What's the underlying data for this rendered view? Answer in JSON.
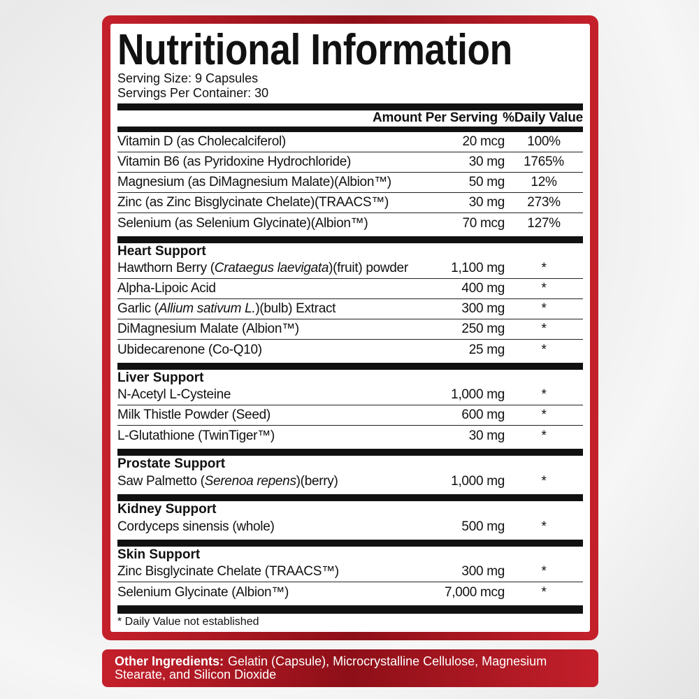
{
  "title": "Nutritional Information",
  "serving_size": "Serving Size: 9 Capsules",
  "servings_per_container": "Servings Per Container: 30",
  "header": {
    "amount": "Amount Per Serving",
    "dv": "%Daily Value"
  },
  "vitamins": [
    {
      "name": "Vitamin D (as Cholecalciferol)",
      "amount": "20 mcg",
      "dv": "100%"
    },
    {
      "name": "Vitamin B6 (as Pyridoxine Hydrochloride)",
      "amount": "30 mg",
      "dv": "1765%"
    },
    {
      "name": "Magnesium (as DiMagnesium Malate)(Albion™)",
      "amount": "50 mg",
      "dv": "12%"
    },
    {
      "name": "Zinc (as Zinc Bisglycinate Chelate)(TRAACS™)",
      "amount": "30 mg",
      "dv": "273%"
    },
    {
      "name": "Selenium (as Selenium Glycinate)(Albion™)",
      "amount": "70 mcg",
      "dv": "127%"
    }
  ],
  "sections": [
    {
      "title": "Heart Support",
      "items": [
        {
          "name": "Hawthorn Berry (Crataegus laevigata)(fruit) powder",
          "italic": "Crataegus laevigata",
          "amount": "1,100 mg",
          "dv": "*"
        },
        {
          "name": "Alpha-Lipoic Acid",
          "amount": "400 mg",
          "dv": "*"
        },
        {
          "name": "Garlic (Allium sativum L.)(bulb) Extract",
          "italic": "Allium sativum L.",
          "amount": "300 mg",
          "dv": "*"
        },
        {
          "name": "DiMagnesium Malate (Albion™)",
          "amount": "250 mg",
          "dv": "*"
        },
        {
          "name": "Ubidecarenone (Co-Q10)",
          "amount": "25 mg",
          "dv": "*"
        }
      ]
    },
    {
      "title": "Liver Support",
      "items": [
        {
          "name": "N-Acetyl L-Cysteine",
          "amount": "1,000 mg",
          "dv": "*"
        },
        {
          "name": "Milk Thistle Powder (Seed)",
          "amount": "600 mg",
          "dv": "*"
        },
        {
          "name": "L-Glutathione (TwinTiger™)",
          "amount": "30 mg",
          "dv": "*"
        }
      ]
    },
    {
      "title": "Prostate Support",
      "items": [
        {
          "name": "Saw Palmetto (Serenoa repens)(berry)",
          "italic": "Serenoa repens",
          "amount": "1,000 mg",
          "dv": "*"
        }
      ]
    },
    {
      "title": "Kidney Support",
      "items": [
        {
          "name": "Cordyceps sinensis (whole)",
          "amount": "500 mg",
          "dv": "*"
        }
      ]
    },
    {
      "title": "Skin Support",
      "items": [
        {
          "name": "Zinc Bisglycinate Chelate (TRAACS™)",
          "amount": "300 mg",
          "dv": "*"
        },
        {
          "name": "Selenium Glycinate (Albion™)",
          "amount": "7,000 mcg",
          "dv": "*"
        }
      ]
    }
  ],
  "footnote": "* Daily Value not established",
  "other_ingredients": {
    "label": "Other Ingredients:",
    "text": "Gelatin (Capsule), Microcrystalline Cellulose, Magnesium Stearate, and Silicon Dioxide"
  },
  "colors": {
    "accent": "#b01a24"
  }
}
